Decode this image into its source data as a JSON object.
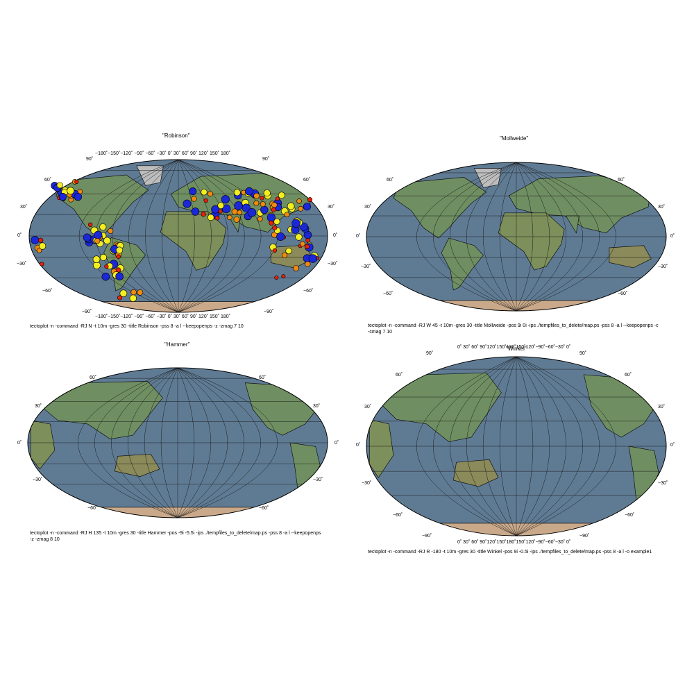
{
  "panels": {
    "robinson": {
      "title": "\"Robinson\"",
      "caption": "tectoplot -n -command -RJ N -t 10m -gres 30 -title Robinson -pss 8 -a l --keepopenps -z -zmag 7 10",
      "lon_labels": "−180˚−150˚−120˚ −90˚ −60˚ −30˚  0˚   30˚   60˚   90˚  120˚  150˚  180˚",
      "lat_labels": {
        "p90": "90˚",
        "p60": "60˚",
        "p30": "30˚",
        "z": "0˚",
        "m30": "−30˚",
        "m60": "−60˚",
        "m90": "−90˚"
      }
    },
    "mollweide": {
      "title": "\"Mollweide\"",
      "caption": "tectoplot -n -command -RJ W 45 -t 10m -gres 30 -title Mollweide -pos 9i 0i -ips ./tempfiles_to_delete/map.ps -pss 8 -a l --keepopenps -c -cmag 7 10",
      "lat_labels": {
        "p60": "60˚",
        "p30": "30˚",
        "z": "0˚",
        "m30": "−30˚",
        "m60": "−60˚"
      }
    },
    "hammer": {
      "title": "\"Hammer\"",
      "caption": "tectoplot -n -command -RJ H 135 -t 10m -gres 30 -title Hammer -pos -9i -5.5i -ips ./tempfiles_to_delete/map.ps -pss 8 -a l --keepopenps -z -zmag 8 10",
      "lat_labels": {
        "p60": "60˚",
        "p30": "30˚",
        "z": "0˚",
        "m30": "−30˚",
        "m60": "−60˚"
      }
    },
    "winkel": {
      "title": "\"Winkel\"",
      "caption": "tectoplot -n -command -RJ R -180 -t 10m -gres 30 -title Winkel -pos 9i -0.5i -ips ./tempfiles_to_delete/map.ps -pss 8 -a l -o example1",
      "lon_labels": "0˚  30˚ 60˚ 90˚120˚150˚180˚150˚120˚−90˚−60˚−30˚ 0˚",
      "lat_labels": {
        "p90": "90˚",
        "p60": "60˚",
        "p30": "30˚",
        "z": "0˚",
        "m30": "−30˚",
        "m60": "−60˚",
        "m90": "−90˚"
      }
    }
  },
  "colors": {
    "ocean": "#5f7b94",
    "land": "#6f8f62",
    "land_high": "#a08a68",
    "ice": "#c9a98a",
    "graticule": "#1a1a1a",
    "quake_red": "#e8200a",
    "quake_orange": "#f08a10",
    "quake_yellow": "#f2ee20",
    "quake_blue": "#1a28d8",
    "quake_green": "#40e040"
  }
}
